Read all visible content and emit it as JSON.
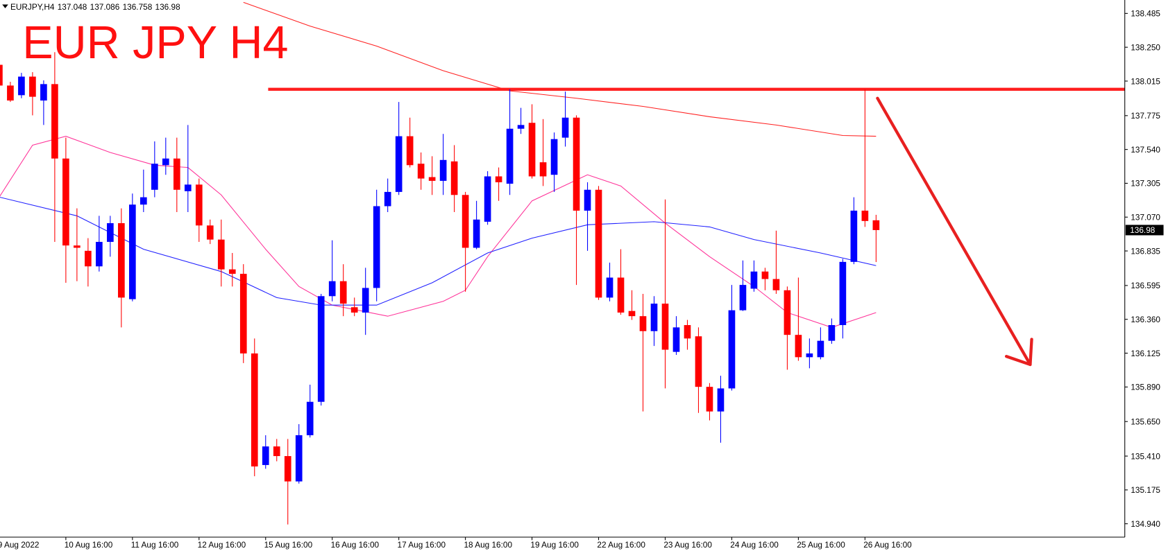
{
  "chart_data": {
    "type": "candlestick",
    "title": "EUR JPY H4",
    "symbol": "EURJPY,H4",
    "bull_color": "#0000ff",
    "bear_color": "#ff0000",
    "grid": false,
    "categories": [
      "9 Aug 2022",
      null,
      null,
      null,
      null,
      null,
      "10 Aug 16:00",
      null,
      null,
      null,
      null,
      null,
      "11 Aug 16:00",
      null,
      null,
      null,
      null,
      null,
      "12 Aug 16:00",
      null,
      null,
      null,
      null,
      null,
      "15 Aug 16:00",
      null,
      null,
      null,
      null,
      null,
      "16 Aug 16:00",
      null,
      null,
      null,
      null,
      null,
      "17 Aug 16:00",
      null,
      null,
      null,
      null,
      null,
      "18 Aug 16:00",
      null,
      null,
      null,
      null,
      null,
      "19 Aug 16:00",
      null,
      null,
      null,
      null,
      null,
      "22 Aug 16:00",
      null,
      null,
      null,
      null,
      null,
      "23 Aug 16:00",
      null,
      null,
      null,
      null,
      null,
      "24 Aug 16:00",
      null,
      null,
      null,
      null,
      null,
      "25 Aug 16:00",
      null,
      null,
      null,
      null,
      null,
      "26 Aug 16:00",
      null
    ],
    "open": [
      138.128,
      137.984,
      137.917,
      138.046,
      137.88,
      137.994,
      137.477,
      136.873,
      136.836,
      136.728,
      136.898,
      137.028,
      136.5,
      137.157,
      137.26,
      137.431,
      137.477,
      137.25,
      137.296,
      137.012,
      136.914,
      136.707,
      136.676,
      136.123,
      135.348,
      135.477,
      135.41,
      135.234,
      135.555,
      135.787,
      136.521,
      136.625,
      136.444,
      136.407,
      136.578,
      137.146,
      137.245,
      137.632,
      137.441,
      137.348,
      137.322,
      137.457,
      137.224,
      136.857,
      137.038,
      137.353,
      137.302,
      137.684,
      137.725,
      137.451,
      137.364,
      137.622,
      137.761,
      137.115,
      137.26,
      136.511,
      136.65,
      136.418,
      136.382,
      136.278,
      136.469,
      136.134,
      136.32,
      136.242,
      135.891,
      135.72,
      135.88,
      136.423,
      136.573,
      136.692,
      136.64,
      136.562,
      136.252,
      136.097,
      136.097,
      136.211,
      136.32,
      136.759,
      137.115,
      137.048
    ],
    "high": [
      138.139,
      138.01,
      138.072,
      138.077,
      138.02,
      138.216,
      137.622,
      137.131,
      136.924,
      137.079,
      137.079,
      137.131,
      137.234,
      137.4,
      137.596,
      137.622,
      137.622,
      137.71,
      137.338,
      137.053,
      137.053,
      136.821,
      136.743,
      136.227,
      135.555,
      135.529,
      135.529,
      135.632,
      135.906,
      136.537,
      136.909,
      136.743,
      136.511,
      136.718,
      137.26,
      137.338,
      137.87,
      137.761,
      137.519,
      137.493,
      137.648,
      137.57,
      137.245,
      137.183,
      137.389,
      137.415,
      137.958,
      137.829,
      137.854,
      137.751,
      137.658,
      137.942,
      137.777,
      137.312,
      137.286,
      136.754,
      136.847,
      136.562,
      136.537,
      136.521,
      137.193,
      136.382,
      136.356,
      136.304,
      135.917,
      135.968,
      136.599,
      136.769,
      136.769,
      136.718,
      136.976,
      136.588,
      136.65,
      136.227,
      136.304,
      136.366,
      136.78,
      137.208,
      137.958,
      137.086
    ],
    "low": [
      137.968,
      137.87,
      137.896,
      137.777,
      137.71,
      136.898,
      136.614,
      136.625,
      136.588,
      136.692,
      136.795,
      136.304,
      136.485,
      137.105,
      137.208,
      137.364,
      137.105,
      137.105,
      136.898,
      136.883,
      136.588,
      136.588,
      136.056,
      135.27,
      135.322,
      135.374,
      134.935,
      135.219,
      135.539,
      135.761,
      136.485,
      136.382,
      136.382,
      136.252,
      136.485,
      137.105,
      137.224,
      137.415,
      137.26,
      137.224,
      137.224,
      137.105,
      136.552,
      136.847,
      137.017,
      137.183,
      137.224,
      137.648,
      137.338,
      137.286,
      137.245,
      137.56,
      136.599,
      136.836,
      136.495,
      136.485,
      136.392,
      136.356,
      135.72,
      136.175,
      135.88,
      136.113,
      136.149,
      135.71,
      135.658,
      135.503,
      135.865,
      136.418,
      136.552,
      136.562,
      136.537,
      136.01,
      136.072,
      136.02,
      136.082,
      136.19,
      136.227,
      136.743,
      137.002,
      136.758
    ],
    "close": [
      137.984,
      137.88,
      138.046,
      137.906,
      137.994,
      137.477,
      136.873,
      136.857,
      136.728,
      136.898,
      137.028,
      136.511,
      137.157,
      137.208,
      137.441,
      137.477,
      137.26,
      137.296,
      137.012,
      136.914,
      136.707,
      136.676,
      136.123,
      135.338,
      135.477,
      135.41,
      135.234,
      135.555,
      135.787,
      136.521,
      136.625,
      136.469,
      136.407,
      136.578,
      137.146,
      137.245,
      137.632,
      137.431,
      137.338,
      137.322,
      137.467,
      137.224,
      136.857,
      137.053,
      137.353,
      137.312,
      137.684,
      137.71,
      137.353,
      137.353,
      137.612,
      137.761,
      137.115,
      137.26,
      136.511,
      136.65,
      136.407,
      136.382,
      136.278,
      136.469,
      136.149,
      136.304,
      136.227,
      135.891,
      135.72,
      135.88,
      136.423,
      136.599,
      136.692,
      136.64,
      136.562,
      136.252,
      136.097,
      136.123,
      136.211,
      136.32,
      136.759,
      137.115,
      137.043,
      136.98
    ],
    "lines": [
      {
        "color": "#ff2020",
        "x": [
          22,
          28,
          34,
          40,
          46,
          52,
          58,
          64,
          70,
          76,
          79
        ],
        "values": [
          138.562,
          138.397,
          138.258,
          138.087,
          137.947,
          137.896,
          137.839,
          137.767,
          137.71,
          137.637,
          137.632
        ]
      },
      {
        "color": "#ff3399",
        "x": [
          0,
          3,
          6,
          10,
          14,
          17,
          20,
          24,
          27,
          30,
          35,
          40,
          42,
          44,
          48,
          53,
          56,
          60,
          64,
          68,
          71,
          75,
          79
        ],
        "values": [
          137.209,
          137.57,
          137.632,
          137.519,
          137.431,
          137.415,
          137.224,
          136.847,
          136.588,
          136.459,
          136.382,
          136.485,
          136.562,
          136.795,
          137.183,
          137.364,
          137.286,
          137.028,
          136.795,
          136.588,
          136.407,
          136.304,
          136.407
        ]
      },
      {
        "color": "#2020ff",
        "x": [
          0,
          7,
          13,
          20,
          25,
          29,
          34,
          39,
          44,
          48,
          53,
          59,
          64,
          68,
          74,
          79
        ],
        "values": [
          137.209,
          137.079,
          136.847,
          136.692,
          136.511,
          136.459,
          136.459,
          136.614,
          136.821,
          136.924,
          137.017,
          137.038,
          137.002,
          136.914,
          136.821,
          136.733
        ]
      }
    ],
    "levels": [
      {
        "value": 137.958,
        "color": "#ff2020"
      }
    ],
    "ylim": [
      134.847,
      138.578
    ],
    "yticks": [
      {
        "value": 138.485,
        "label": "138.485"
      },
      {
        "value": 138.25,
        "label": "138.250"
      },
      {
        "value": 138.015,
        "label": "138.015"
      },
      {
        "value": 137.775,
        "label": "137.775"
      },
      {
        "value": 137.54,
        "label": "137.540"
      },
      {
        "value": 137.305,
        "label": "137.305"
      },
      {
        "value": 137.07,
        "label": "137.070"
      },
      {
        "value": 136.835,
        "label": "136.835"
      },
      {
        "value": 136.595,
        "label": "136.595"
      },
      {
        "value": 136.36,
        "label": "136.360"
      },
      {
        "value": 136.125,
        "label": "136.125"
      },
      {
        "value": 135.89,
        "label": "135.890"
      },
      {
        "value": 135.65,
        "label": "135.650"
      },
      {
        "value": 135.41,
        "label": "135.410"
      },
      {
        "value": 135.175,
        "label": "135.175"
      },
      {
        "value": 134.94,
        "label": "134.940"
      }
    ]
  }
}
